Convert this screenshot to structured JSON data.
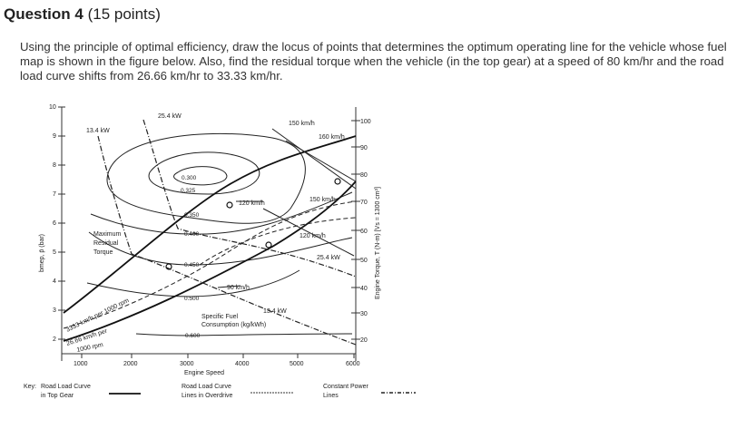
{
  "heading": {
    "number": "Question 4",
    "points": "(15 points)"
  },
  "question_text": "Using the principle of optimal efficiency, draw the locus of points that determines the optimum operating line for the vehicle whose fuel map is shown in the figure below. Also, find the residual torque when the vehicle (in the top gear) at a speed of 80 km/hr and the road load curve shifts from 26.66 km/hr to 33.33 km/hr.",
  "figure": {
    "x_axis": {
      "label": "Engine Speed",
      "ticks": [
        "1000",
        "2000",
        "3000",
        "4000",
        "5000",
        "6000"
      ]
    },
    "y_left": {
      "label": "bmep, p̄ (bar)",
      "ticks": [
        "10",
        "9",
        "8",
        "7",
        "6",
        "5",
        "4",
        "3",
        "2"
      ]
    },
    "y_right": {
      "label": "Engine Torque, T (N-m) [Vs = 1300 cm³]",
      "ticks": [
        "100",
        "90",
        "80",
        "70",
        "60",
        "50",
        "40",
        "30",
        "20"
      ]
    },
    "contours": [
      "0.300",
      "0.325",
      "0.350",
      "0.400",
      "0.450",
      "0.500",
      "0.600"
    ],
    "labels": {
      "power_25_4_top": "25.4 kW",
      "power_13_4_top": "13.4 kW",
      "power_25_4_right": "25.4 kW",
      "power_13_4_bottom": "13.4 kW",
      "speed_150_top": "150 km/h",
      "speed_160": "160 km/h",
      "speed_150_mid": "150 km/h",
      "speed_120_mid": "120 km/h",
      "speed_120_right": "120 km/h",
      "speed_90": "90 km/h",
      "max_residual_torque": [
        "Maximum",
        "Residual",
        "Torque"
      ],
      "specific_fuel": [
        "Specific Fuel",
        "Consumption (kg/kWh)"
      ],
      "label_3333": "3333 km/h per 1000 rpm",
      "label_2666": [
        "26.66 km/h per",
        "1000 rpm"
      ]
    },
    "key": {
      "title": "Key:",
      "road_top_gear": [
        "Road Load Curve",
        "in Top Gear"
      ],
      "road_overdrive": [
        "Road Load Curve",
        "Lines in Overdrive"
      ],
      "constant_power": [
        "Constant Power",
        "Lines"
      ]
    }
  }
}
